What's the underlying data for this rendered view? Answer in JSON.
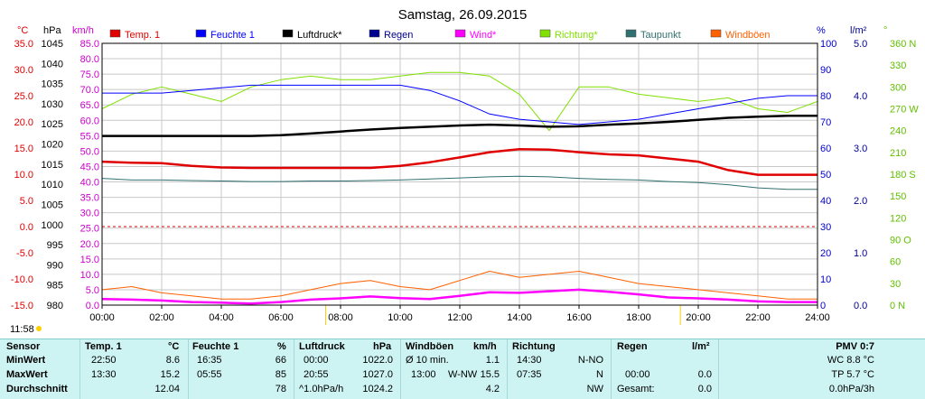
{
  "title": "Samstag, 26.09.2015",
  "header_units": {
    "c": "°C",
    "hpa": "hPa",
    "kmh": "km/h",
    "pct": "%",
    "lm2": "l/m²",
    "deg": "°"
  },
  "legend": [
    {
      "label": "Temp. 1",
      "color": "#e00000"
    },
    {
      "label": "Feuchte 1",
      "color": "#0000ff"
    },
    {
      "label": "Luftdruck*",
      "color": "#000000"
    },
    {
      "label": "Regen",
      "color": "#000090"
    },
    {
      "label": "Wind*",
      "color": "#ff00ff"
    },
    {
      "label": "Richtung*",
      "color": "#80e000"
    },
    {
      "label": "Taupunkt",
      "color": "#307070"
    },
    {
      "label": "Windböen",
      "color": "#ff6000"
    }
  ],
  "axes_text": {
    "c": [
      "35.0",
      "30.0",
      "25.0",
      "20.0",
      "15.0",
      "10.0",
      "5.0",
      "0.0",
      "-5.0",
      "-10.0",
      "-15.0"
    ],
    "hpa": [
      "1045",
      "1040",
      "1035",
      "1030",
      "1025",
      "1020",
      "1015",
      "1010",
      "1005",
      "1000",
      "995",
      "990",
      "985",
      "980"
    ],
    "kmh": [
      "85.0",
      "80.0",
      "75.0",
      "70.0",
      "65.0",
      "60.0",
      "55.0",
      "50.0",
      "45.0",
      "40.0",
      "35.0",
      "30.0",
      "25.0",
      "20.0",
      "15.0",
      "10.0",
      "5.0",
      "0.0"
    ],
    "pct": [
      "100",
      "90",
      "80",
      "70",
      "60",
      "50",
      "40",
      "30",
      "20",
      "10",
      "0"
    ],
    "lm2": [
      "5.0",
      "4.0",
      "3.0",
      "2.0",
      "1.0",
      "0.0"
    ],
    "dir": [
      "360 N",
      "330",
      "300",
      "270 W",
      "240",
      "210",
      "180 S",
      "150",
      "120",
      "90 O",
      "60",
      "30",
      "0 N"
    ],
    "x": [
      "00:00",
      "02:00",
      "04:00",
      "06:00",
      "08:00",
      "10:00",
      "12:00",
      "14:00",
      "16:00",
      "18:00",
      "20:00",
      "22:00",
      "24:00"
    ]
  },
  "now_time": "11:58",
  "chart_data": {
    "type": "line",
    "title": "Samstag, 26.09.2015",
    "x_hours": [
      0,
      1,
      2,
      3,
      4,
      5,
      6,
      7,
      8,
      9,
      10,
      11,
      12,
      13,
      14,
      15,
      16,
      17,
      18,
      19,
      20,
      21,
      22,
      23,
      24
    ],
    "series": [
      {
        "name": "Temp. 1",
        "axis": "°C",
        "values": [
          12.4,
          12.2,
          12.1,
          11.6,
          11.3,
          11.2,
          11.2,
          11.2,
          11.2,
          11.2,
          11.6,
          12.3,
          13.2,
          14.2,
          14.8,
          14.7,
          14.2,
          13.8,
          13.6,
          13.0,
          12.4,
          10.8,
          9.9,
          9.9,
          9.9
        ]
      },
      {
        "name": "Feuchte 1",
        "axis": "%",
        "values": [
          81,
          81,
          81,
          82,
          83,
          84,
          84,
          84,
          84,
          84,
          84,
          82,
          78,
          73,
          71,
          70,
          69,
          70,
          71,
          73,
          75,
          77,
          79,
          80,
          80
        ]
      },
      {
        "name": "Luftdruck*",
        "axis": "hPa",
        "values": [
          1022.0,
          1022.0,
          1022.0,
          1022.0,
          1022.0,
          1022.0,
          1022.2,
          1022.6,
          1023.1,
          1023.6,
          1024.0,
          1024.3,
          1024.6,
          1024.8,
          1024.6,
          1024.3,
          1024.4,
          1024.8,
          1025.1,
          1025.5,
          1026.0,
          1026.5,
          1026.8,
          1027.0,
          1027.0
        ]
      },
      {
        "name": "Regen",
        "axis": "l/m²",
        "values": [
          0,
          0,
          0,
          0,
          0,
          0,
          0,
          0,
          0,
          0,
          0,
          0,
          0,
          0,
          0,
          0,
          0,
          0,
          0,
          0,
          0,
          0,
          0,
          0,
          0
        ]
      },
      {
        "name": "Wind*",
        "axis": "km/h",
        "values": [
          2.0,
          1.8,
          1.5,
          1.0,
          0.8,
          0.5,
          1.0,
          1.8,
          2.2,
          2.8,
          2.3,
          2.0,
          3.0,
          4.2,
          4.0,
          4.5,
          5.0,
          4.3,
          3.5,
          2.5,
          2.2,
          1.8,
          1.2,
          1.0,
          1.0
        ]
      },
      {
        "name": "Richtung*",
        "axis": "°",
        "values": [
          270,
          290,
          300,
          290,
          280,
          300,
          310,
          315,
          310,
          310,
          315,
          320,
          320,
          315,
          290,
          240,
          300,
          300,
          290,
          285,
          280,
          285,
          270,
          265,
          280
        ]
      },
      {
        "name": "Taupunkt",
        "axis": "°C",
        "values": [
          9.2,
          8.9,
          8.9,
          8.8,
          8.7,
          8.6,
          8.6,
          8.7,
          8.7,
          8.8,
          8.9,
          9.1,
          9.3,
          9.5,
          9.6,
          9.5,
          9.2,
          9.0,
          8.9,
          8.6,
          8.4,
          8.0,
          7.4,
          7.1,
          7.1
        ]
      },
      {
        "name": "Windböen",
        "axis": "km/h",
        "values": [
          5,
          6,
          4,
          3,
          2,
          2,
          3,
          5,
          7,
          8,
          6,
          5,
          8,
          11,
          9,
          10,
          11,
          9,
          7,
          6,
          5,
          4,
          3,
          2,
          2
        ]
      }
    ],
    "axes_ranges": {
      "temp_c": [
        -15,
        35
      ],
      "pressure_hpa": [
        980,
        1045
      ],
      "speed_kmh": [
        0,
        85
      ],
      "humidity_pct": [
        0,
        100
      ],
      "rain_lm2": [
        0,
        5
      ],
      "direction_deg": [
        0,
        360
      ]
    },
    "grid": true
  },
  "table": {
    "headers": {
      "sensor": "Sensor",
      "temp": "Temp. 1",
      "temp_unit": "°C",
      "feuchte": "Feuchte 1",
      "feuchte_unit": "%",
      "druck": "Luftdruck",
      "druck_unit": "hPa",
      "boeen": "Windböen",
      "boeen_unit": "km/h",
      "richtung": "Richtung",
      "regen": "Regen",
      "regen_unit": "l/m²",
      "pmv": "PMV 0:7"
    },
    "rows": {
      "min": {
        "label": "MinWert",
        "temp_t": "22:50",
        "temp_v": "8.6",
        "feuchte_t": "16:35",
        "feuchte_v": "66",
        "druck_t": "00:00",
        "druck_v": "1022.0",
        "boeen_t": "Ø 10 min.",
        "boeen_v": "1.1",
        "richtung_t": "14:30",
        "richtung_v": "N-NO",
        "regen_t": "",
        "regen_v": "",
        "pmv": "WC 8.8 °C"
      },
      "max": {
        "label": "MaxWert",
        "temp_t": "13:30",
        "temp_v": "15.2",
        "feuchte_t": "05:55",
        "feuchte_v": "85",
        "druck_t": "20:55",
        "druck_v": "1027.0",
        "boeen_t": "13:00",
        "boeen_mid": "W-NW",
        "boeen_v": "15.5",
        "richtung_t": "07:35",
        "richtung_v": "N",
        "regen_t": "00:00",
        "regen_v": "0.0",
        "pmv": "TP 5.7 °C"
      },
      "avg": {
        "label": "Durchschnitt",
        "temp_t": "",
        "temp_v": "12.04",
        "feuchte_t": "",
        "feuchte_v": "78",
        "druck_t": "^1.0hPa/h",
        "druck_v": "1024.2",
        "boeen_t": "",
        "boeen_v": "4.2",
        "richtung_t": "",
        "richtung_v": "NW",
        "regen_t": "Gesamt:",
        "regen_v": "0.0",
        "pmv": "0.0hPa/3h"
      }
    }
  }
}
